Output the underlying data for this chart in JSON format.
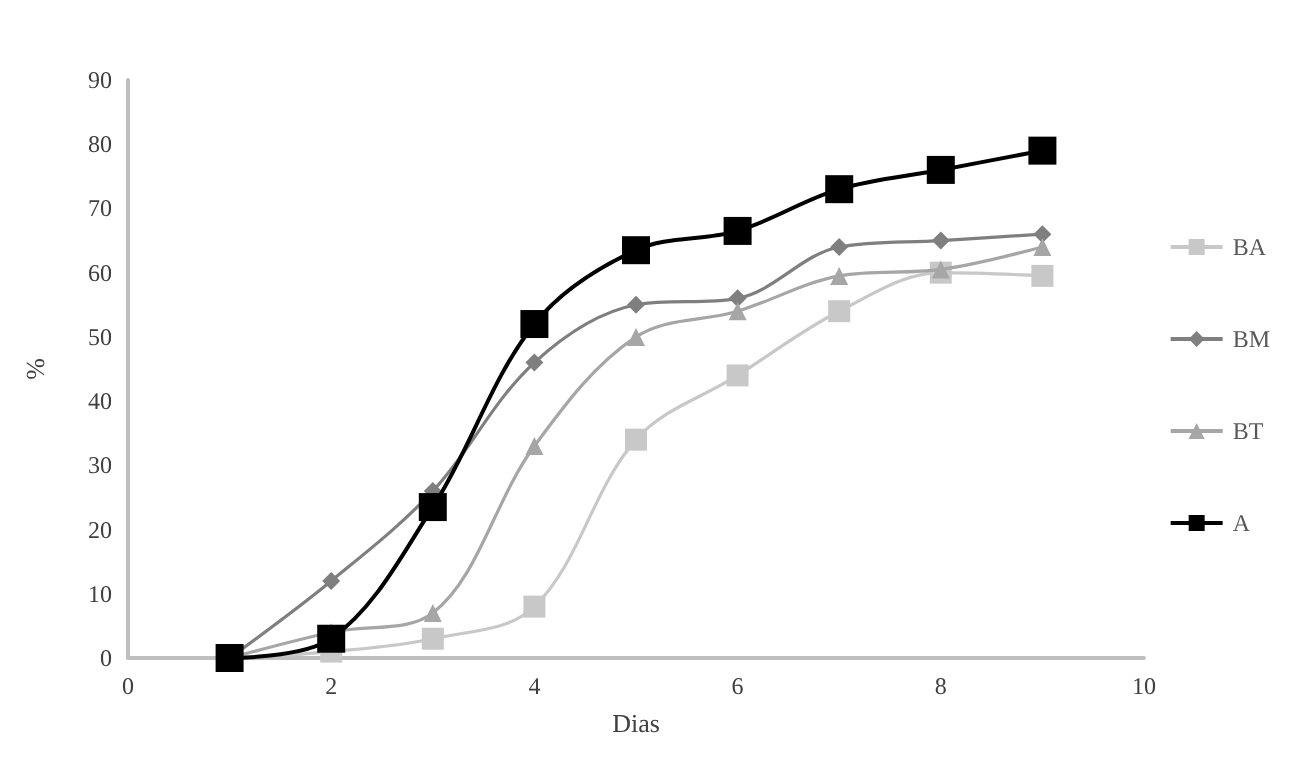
{
  "chart_data": {
    "type": "line",
    "xlabel": "Dias",
    "ylabel": "%",
    "x": [
      1,
      2,
      3,
      4,
      5,
      6,
      7,
      8,
      9
    ],
    "xlim": [
      0,
      10
    ],
    "xticks": [
      0,
      2,
      4,
      6,
      8,
      10
    ],
    "ylim": [
      0,
      90
    ],
    "yticks": [
      0,
      10,
      20,
      30,
      40,
      50,
      60,
      70,
      80,
      90
    ],
    "grid": false,
    "legend": "right",
    "series": [
      {
        "name": "BA",
        "color": "#c8c8c8",
        "marker": "square",
        "values": [
          0,
          1,
          3,
          8,
          34,
          44,
          54,
          60,
          59.5
        ]
      },
      {
        "name": "BM",
        "color": "#7f7f7f",
        "marker": "diamond",
        "values": [
          0,
          12,
          26,
          46,
          55,
          56,
          64,
          65,
          66
        ]
      },
      {
        "name": "BT",
        "color": "#a6a6a6",
        "marker": "triangle",
        "values": [
          0,
          4,
          7,
          33,
          50,
          54,
          59.5,
          60.5,
          64
        ]
      },
      {
        "name": "A",
        "color": "#000000",
        "marker": "square",
        "values": [
          0,
          3,
          23.5,
          52,
          63.5,
          66.5,
          73,
          76,
          79
        ]
      }
    ]
  }
}
